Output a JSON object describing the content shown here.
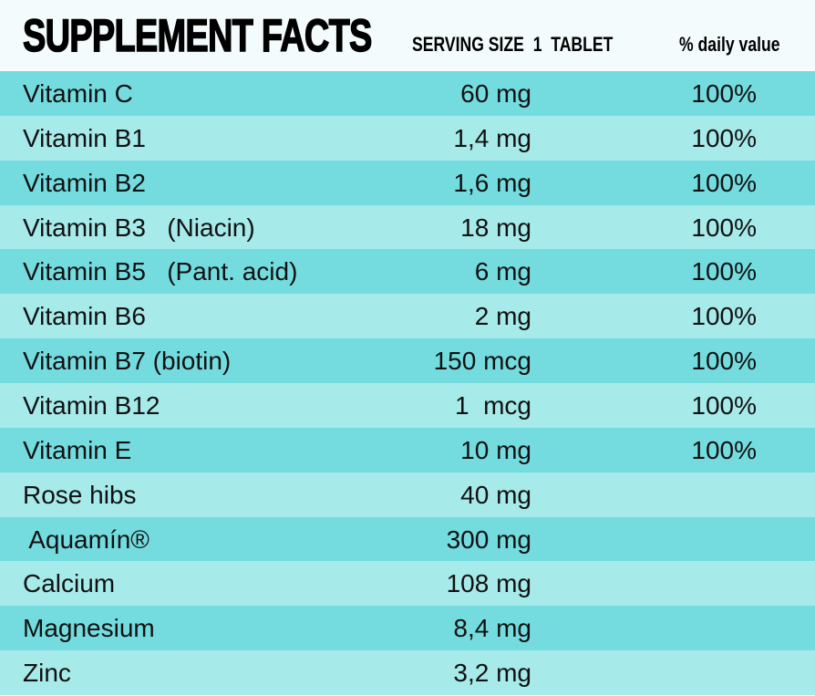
{
  "header": {
    "title": "SUPPLEMENT FACTS",
    "serving_size": "SERVING SIZE  1  TABLET",
    "daily_value": "% daily value"
  },
  "table": {
    "rows": [
      [
        "Vitamin C",
        "60 mg",
        "100%"
      ],
      [
        "Vitamin B1",
        "1,4 mg",
        "100%"
      ],
      [
        "Vitamin B2",
        "1,6 mg",
        "100%"
      ],
      [
        "Vitamin B3   (Niacin)",
        "18 mg",
        "100%"
      ],
      [
        "Vitamin B5   (Pant. acid)",
        "6 mg",
        "100%"
      ],
      [
        "Vitamin B6",
        "2 mg",
        "100%"
      ],
      [
        "Vitamin B7 (biotin)",
        "150 mcg",
        "100%"
      ],
      [
        "Vitamin B12",
        "1  mcg",
        "100%"
      ],
      [
        "Vitamin E",
        "10 mg",
        "100%"
      ],
      [
        "Rose hibs",
        "40 mg"
      ],
      [
        " Aquamín®",
        "300 mg"
      ],
      [
        "Calcium",
        "108 mg"
      ],
      [
        "Magnesium",
        "8,4 mg"
      ],
      [
        "Zinc",
        "3,2 mg"
      ]
    ]
  }
}
